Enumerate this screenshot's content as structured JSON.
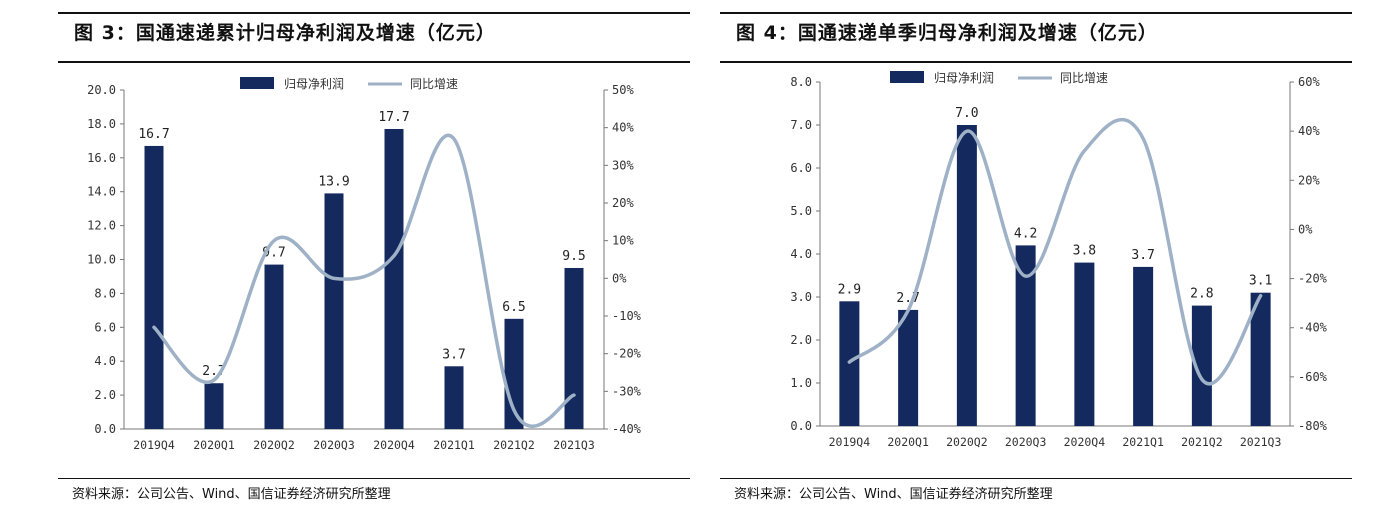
{
  "charts": [
    {
      "title": "图 3：国通速递累计归母净利润及增速（亿元）",
      "source": "资料来源：公司公告、Wind、国信证券经济研究所整理",
      "legend": {
        "bar": "归母净利润",
        "line": "同比增速"
      },
      "colors": {
        "bar": "#14295e",
        "line": "#9fb1c6"
      },
      "y_left_ticks": [
        "0.0",
        "2.0",
        "4.0",
        "6.0",
        "8.0",
        "10.0",
        "12.0",
        "14.0",
        "16.0",
        "18.0",
        "20.0"
      ],
      "y_right_ticks": [
        "-40%",
        "-30%",
        "-20%",
        "-10%",
        "0%",
        "10%",
        "20%",
        "30%",
        "40%",
        "50%"
      ]
    },
    {
      "title": "图 4：国通速递单季归母净利润及增速（亿元）",
      "source": "资料来源：公司公告、Wind、国信证券经济研究所整理",
      "legend": {
        "bar": "归母净利润",
        "line": "同比增速"
      },
      "colors": {
        "bar": "#14295e",
        "line": "#9fb1c6"
      },
      "y_left_ticks": [
        "0.0",
        "1.0",
        "2.0",
        "3.0",
        "4.0",
        "5.0",
        "6.0",
        "7.0",
        "8.0"
      ],
      "y_right_ticks": [
        "-80%",
        "-60%",
        "-40%",
        "-20%",
        "0%",
        "20%",
        "40%",
        "60%"
      ]
    }
  ],
  "chart_data": [
    {
      "type": "bar",
      "categories": [
        "2019Q4",
        "2020Q1",
        "2020Q2",
        "2020Q3",
        "2020Q4",
        "2021Q1",
        "2021Q2",
        "2021Q3"
      ],
      "series": [
        {
          "name": "归母净利润",
          "type": "bar",
          "axis": "left",
          "values": [
            16.7,
            2.7,
            9.7,
            13.9,
            17.7,
            3.7,
            6.5,
            9.5
          ],
          "labels": [
            "16.7",
            "2.7",
            "9.7",
            "13.9",
            "17.7",
            "3.7",
            "6.5",
            "9.5"
          ]
        },
        {
          "name": "同比增速",
          "type": "line",
          "axis": "right",
          "unit": "%",
          "values": [
            -13,
            -27,
            10,
            0,
            6,
            37,
            -35,
            -31
          ]
        }
      ],
      "ylim": [
        0,
        20
      ],
      "y2lim": [
        -40,
        50
      ]
    },
    {
      "type": "bar",
      "categories": [
        "2019Q4",
        "2020Q1",
        "2020Q2",
        "2020Q3",
        "2020Q4",
        "2021Q1",
        "2021Q2",
        "2021Q3"
      ],
      "series": [
        {
          "name": "归母净利润",
          "type": "bar",
          "axis": "left",
          "values": [
            2.9,
            2.7,
            7.0,
            4.2,
            3.8,
            3.7,
            2.8,
            3.1
          ],
          "labels": [
            "2.9",
            "2.7",
            "7.0",
            "4.2",
            "3.8",
            "3.7",
            "2.8",
            "3.1"
          ]
        },
        {
          "name": "同比增速",
          "type": "line",
          "axis": "right",
          "unit": "%",
          "values": [
            -54,
            -33,
            40,
            -19,
            32,
            37,
            -61,
            -27
          ]
        }
      ],
      "ylim": [
        0,
        8
      ],
      "y2lim": [
        -80,
        60
      ]
    }
  ]
}
